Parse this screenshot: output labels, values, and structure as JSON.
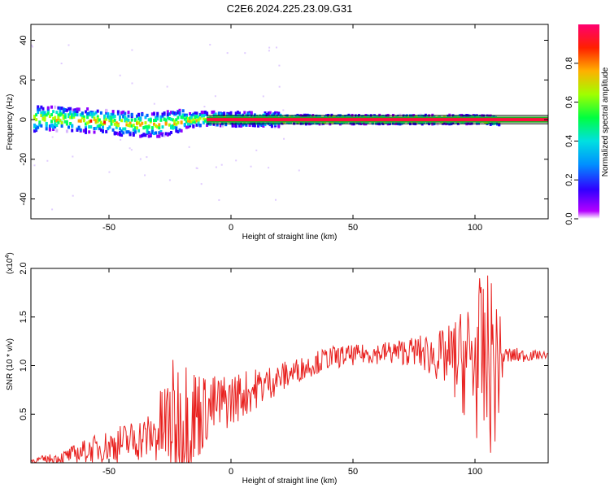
{
  "title": "C2E6.2024.225.23.09.G31",
  "chart_data": [
    {
      "type": "heatmap",
      "description": "Spectrogram of signal frequency vs height of straight line",
      "xlabel": "Height of straight line (km)",
      "ylabel": "Frequency (Hz)",
      "xlim": [
        -82,
        130
      ],
      "ylim": [
        -50,
        48
      ],
      "xticks": [
        -50,
        0,
        50,
        100
      ],
      "yticks": [
        -40,
        -20,
        0,
        20,
        40
      ],
      "colorbar": {
        "label": "Normalized spectral amplitude",
        "range": [
          0,
          1
        ],
        "ticks": [
          "0.0",
          "0.2",
          "0.4",
          "0.6",
          "0.8"
        ],
        "colormap": [
          "#ffffff",
          "#7a00ff",
          "#0000ff",
          "#00c8ff",
          "#00ff40",
          "#c8ff00",
          "#ff8000",
          "#ff0000",
          "#ff0060"
        ]
      },
      "ridge": [
        {
          "x": -80,
          "y": 0.5
        },
        {
          "x": -70,
          "y": 0.3
        },
        {
          "x": -60,
          "y": -0.5
        },
        {
          "x": -50,
          "y": -1.5
        },
        {
          "x": -40,
          "y": -2.5
        },
        {
          "x": -30,
          "y": -2.5
        },
        {
          "x": -20,
          "y": -0.5
        },
        {
          "x": -10,
          "y": 0.5
        },
        {
          "x": 0,
          "y": 0.2
        },
        {
          "x": 20,
          "y": 0
        },
        {
          "x": 60,
          "y": 0
        },
        {
          "x": 100,
          "y": 0
        },
        {
          "x": 110,
          "y": -0.5
        },
        {
          "x": 130,
          "y": 0
        }
      ],
      "model_band_hz": [
        -1.5,
        1.5
      ]
    },
    {
      "type": "line",
      "xlabel": "Height of straight line (km)",
      "ylabel": "SNR (10 * v/v)",
      "yscale_label": "(x10",
      "yscale_exponent": "4",
      "xlim": [
        -82,
        130
      ],
      "ylim": [
        0,
        2.0
      ],
      "xticks": [
        -50,
        0,
        50,
        100
      ],
      "yticks": [
        "0.5",
        "1.0",
        "1.5",
        "2.0"
      ],
      "series": [
        {
          "color": "#e8201e",
          "envelope": [
            {
              "x": -82,
              "base": 0.02,
              "amp": 0.03
            },
            {
              "x": -70,
              "base": 0.05,
              "amp": 0.06
            },
            {
              "x": -60,
              "base": 0.12,
              "amp": 0.12
            },
            {
              "x": -45,
              "base": 0.2,
              "amp": 0.2
            },
            {
              "x": -32,
              "base": 0.28,
              "amp": 0.25
            },
            {
              "x": -25,
              "base": 0.4,
              "amp": 0.65
            },
            {
              "x": -18,
              "base": 0.45,
              "amp": 0.7
            },
            {
              "x": -10,
              "base": 0.55,
              "amp": 0.35
            },
            {
              "x": 0,
              "base": 0.65,
              "amp": 0.28
            },
            {
              "x": 15,
              "base": 0.82,
              "amp": 0.18
            },
            {
              "x": 30,
              "base": 0.98,
              "amp": 0.12
            },
            {
              "x": 40,
              "base": 1.08,
              "amp": 0.12
            },
            {
              "x": 55,
              "base": 1.12,
              "amp": 0.1
            },
            {
              "x": 75,
              "base": 1.15,
              "amp": 0.15
            },
            {
              "x": 88,
              "base": 1.08,
              "amp": 0.3
            },
            {
              "x": 95,
              "base": 1.05,
              "amp": 0.55
            },
            {
              "x": 101,
              "base": 1.05,
              "amp": 0.85
            },
            {
              "x": 108,
              "base": 1.0,
              "amp": 0.95
            },
            {
              "x": 112,
              "base": 1.1,
              "amp": 0.1
            },
            {
              "x": 130,
              "base": 1.11,
              "amp": 0.03
            }
          ]
        }
      ]
    }
  ]
}
